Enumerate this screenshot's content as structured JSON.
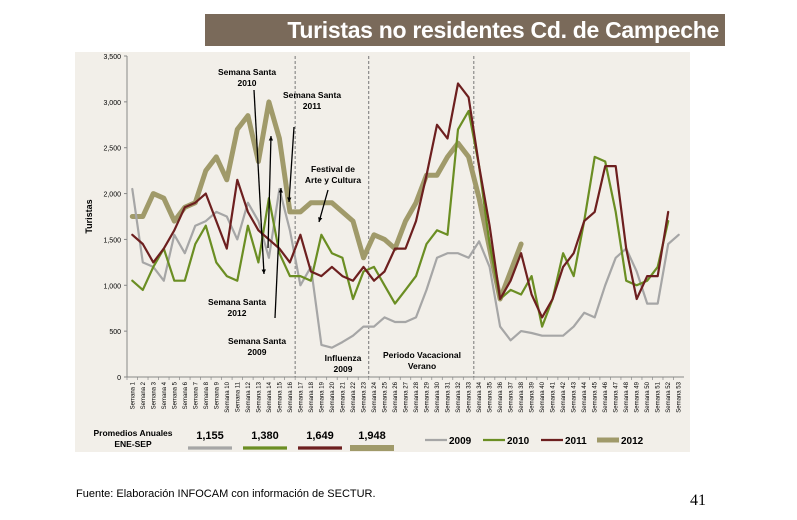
{
  "title": "Turistas no residentes Cd. de Campeche",
  "source": "Fuente: Elaboración INFOCAM con información de SECTUR.",
  "page_number": "41",
  "promedios": {
    "label_line1": "Promedios Anuales",
    "label_line2": "ENE-SEP",
    "values": [
      "1,155",
      "1,380",
      "1,649",
      "1,948"
    ]
  },
  "annotations": {
    "ss2010": [
      "Semana Santa",
      "2010"
    ],
    "ss2011": [
      "Semana Santa",
      "2011"
    ],
    "festival": [
      "Festival de",
      "Arte  y  Cultura"
    ],
    "ss2012": [
      "Semana Santa",
      "2012"
    ],
    "ss2009": [
      "Semana Santa",
      "2009"
    ],
    "influenza": [
      "Influenza",
      "2009"
    ],
    "vacacional": [
      "Periodo Vacacional",
      "Verano"
    ]
  },
  "chart_data": {
    "type": "line",
    "title": "Turistas no residentes Cd. de Campeche",
    "xlabel": "",
    "ylabel": "Turistas",
    "ylim": [
      0,
      3500
    ],
    "yticks": [
      "0",
      "500",
      "1,000",
      "1,500",
      "2,000",
      "2,500",
      "3,000",
      "3,500"
    ],
    "grid": false,
    "legend": "bottom-right",
    "categories": [
      "Semana 1",
      "Semana 2",
      "Semana 3",
      "Semana 4",
      "Semana 5",
      "Semana 6",
      "Semana 7",
      "Semana 8",
      "Semana 9",
      "Semana 10",
      "Semana 11",
      "Semana 12",
      "Semana 13",
      "Semana 14",
      "Semana 15",
      "Semana 16",
      "Semana 17",
      "Semana 18",
      "Semana 19",
      "Semana 20",
      "Semana 21",
      "Semana 22",
      "Semana 23",
      "Semana 24",
      "Semana 25",
      "Semana 26",
      "Semana 27",
      "Semana 28",
      "Semana 29",
      "Semana 30",
      "Semana 31",
      "Semana 32",
      "Semana 33",
      "Semana 34",
      "Semana 35",
      "Semana 36",
      "Semana 37",
      "Semana 38",
      "Semana 39",
      "Semana 40",
      "Semana 41",
      "Semana 42",
      "Semana 43",
      "Semana 44",
      "Semana 45",
      "Semana 46",
      "Semana 47",
      "Semana 48",
      "Semana 49",
      "Semana 50",
      "Semana 51",
      "Semana 52",
      "Semana 53"
    ],
    "series": [
      {
        "name": "2009",
        "color": "#a6a6a6",
        "width": 2.2,
        "values": [
          2050,
          1250,
          1200,
          1050,
          1550,
          1350,
          1650,
          1700,
          1800,
          1750,
          1500,
          1900,
          1700,
          1300,
          2050,
          1600,
          1000,
          1200,
          350,
          320,
          380,
          450,
          550,
          550,
          650,
          600,
          600,
          650,
          950,
          1300,
          1350,
          1350,
          1300,
          1480,
          1200,
          550,
          400,
          500,
          480,
          450,
          450,
          450,
          550,
          700,
          650,
          1000,
          1300,
          1400,
          1150,
          800,
          800,
          1450,
          1550
        ]
      },
      {
        "name": "2010",
        "color": "#6b8e23",
        "width": 2.2,
        "values": [
          1050,
          950,
          1200,
          1400,
          1050,
          1050,
          1450,
          1650,
          1250,
          1100,
          1050,
          1650,
          1250,
          1950,
          1350,
          1100,
          1100,
          1050,
          1550,
          1350,
          1300,
          850,
          1150,
          1200,
          1000,
          800,
          950,
          1100,
          1450,
          1600,
          1550,
          2700,
          2900,
          2300,
          1450,
          850,
          950,
          900,
          1100,
          550,
          850,
          1350,
          1100,
          1700,
          2400,
          2350,
          1800,
          1050,
          1000,
          1050,
          1200,
          1700,
          null
        ]
      },
      {
        "name": "2011",
        "color": "#6d1f1f",
        "width": 2.2,
        "values": [
          1550,
          1450,
          1250,
          1400,
          1600,
          1850,
          1900,
          2000,
          1700,
          1400,
          2150,
          1800,
          1600,
          1500,
          1400,
          1250,
          1550,
          1150,
          1100,
          1200,
          1100,
          1050,
          1200,
          1050,
          1150,
          1400,
          1400,
          1700,
          2200,
          2750,
          2600,
          3200,
          3050,
          2300,
          1650,
          850,
          1050,
          1350,
          900,
          650,
          850,
          1200,
          1350,
          1700,
          1800,
          2300,
          2300,
          1400,
          850,
          1100,
          1100,
          1800,
          null
        ]
      },
      {
        "name": "2012",
        "color": "#a09a6a",
        "width": 5,
        "values": [
          1750,
          1750,
          2000,
          1950,
          1700,
          1850,
          1900,
          2250,
          2400,
          2150,
          2700,
          2850,
          2350,
          3000,
          2600,
          1800,
          1800,
          1900,
          1900,
          1900,
          1800,
          1700,
          1300,
          1550,
          1500,
          1400,
          1700,
          1900,
          2200,
          2200,
          2400,
          2550,
          2400,
          1950,
          1400,
          850,
          1150,
          1450,
          null,
          null,
          null,
          null,
          null,
          null,
          null,
          null,
          null,
          null,
          null,
          null,
          null,
          null,
          null
        ]
      }
    ]
  }
}
